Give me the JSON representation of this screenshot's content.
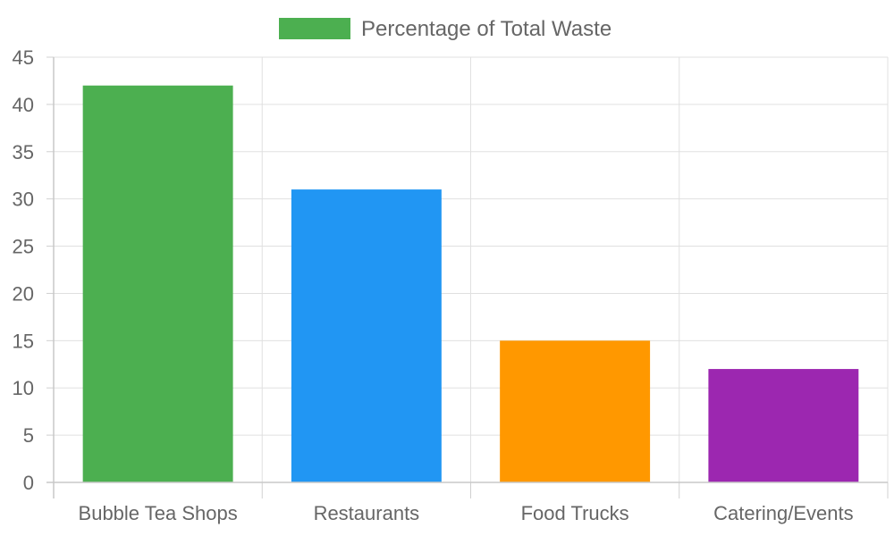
{
  "chart_data": {
    "type": "bar",
    "categories": [
      "Bubble Tea Shops",
      "Restaurants",
      "Food Trucks",
      "Catering/Events"
    ],
    "series": [
      {
        "name": "Percentage of Total Waste",
        "values": [
          42,
          31,
          15,
          12
        ]
      }
    ],
    "bar_colors": [
      "#4caf50",
      "#2196f3",
      "#ff9800",
      "#9c27b0"
    ],
    "legend_color": "#4caf50",
    "legend_position": "top-center",
    "ylim": [
      0,
      45
    ],
    "yticks": [
      "0",
      "5",
      "10",
      "15",
      "20",
      "25",
      "30",
      "35",
      "40",
      "45"
    ],
    "grid": true,
    "title": "",
    "xlabel": "",
    "ylabel": ""
  }
}
